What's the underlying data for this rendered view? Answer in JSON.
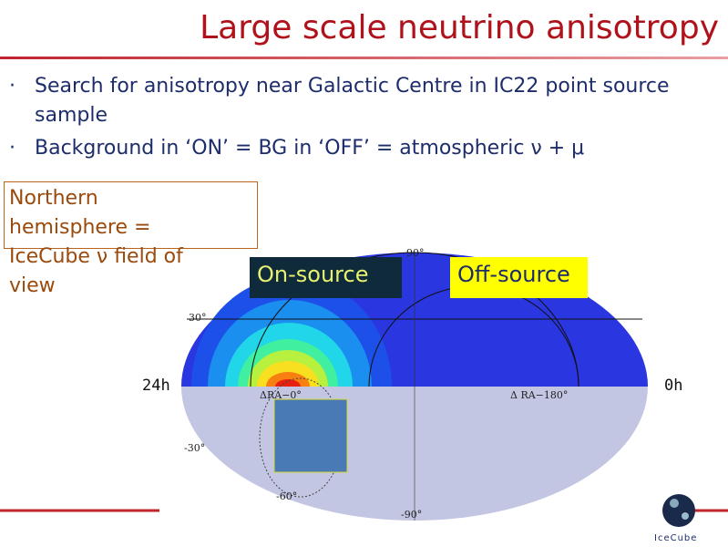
{
  "header": {
    "title": "Large scale neutrino anisotropy"
  },
  "bullets": [
    "Search for anisotropy near Galactic Centre in IC22 point source sample",
    "Background in ‘ON’ = BG in ‘OFF’ = atmospheric ν + μ"
  ],
  "note": {
    "lines": [
      "Northern",
      "hemisphere =",
      "IceCube ν field of",
      "view"
    ]
  },
  "map": {
    "on_label": "On-source",
    "off_label": "Off-source",
    "left_label": "24h",
    "right_label": "0h",
    "lat_labels": [
      "90°",
      "30°",
      "-30°",
      "-60°",
      "-90°"
    ],
    "ra_labels": [
      "ΔRA−0°",
      "Δ RA−180°"
    ]
  },
  "logo": {
    "text": "IceCube"
  }
}
